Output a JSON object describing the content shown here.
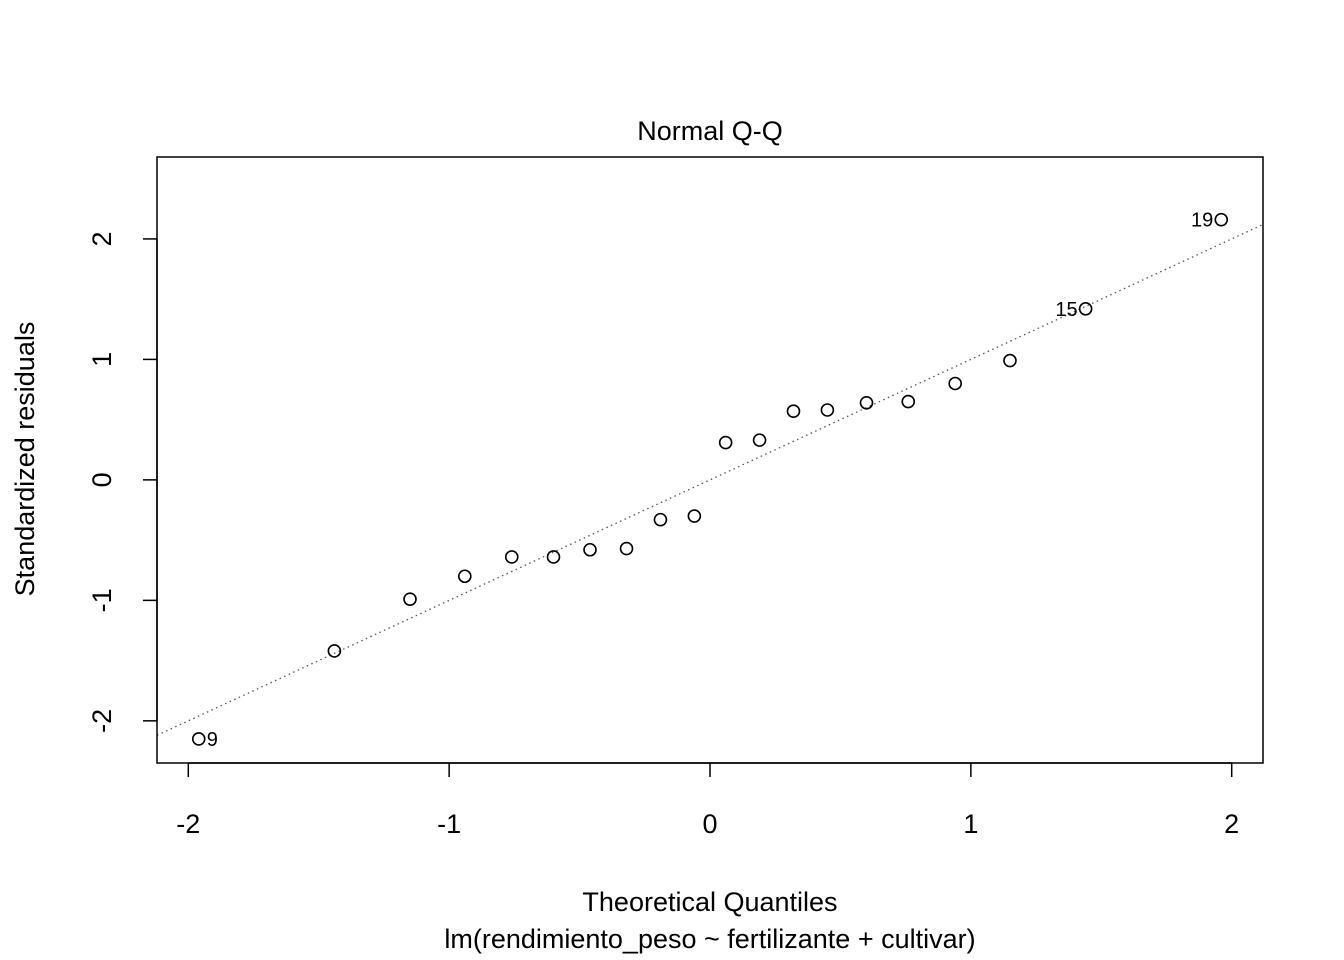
{
  "chart_data": {
    "type": "scatter",
    "title": "Normal Q-Q",
    "xlabel": "Theoretical Quantiles",
    "subtitle": "lm(rendimiento_peso ~ fertilizante + cultivar)",
    "ylabel": "Standardized residuals",
    "xlim": [
      -2.12,
      2.12
    ],
    "ylim": [
      -2.35,
      2.68
    ],
    "x_ticks": [
      -2,
      -1,
      0,
      1,
      2
    ],
    "x_tick_labels": [
      "-2",
      "-1",
      "0",
      "1",
      "2"
    ],
    "y_ticks": [
      -2,
      -1,
      0,
      1,
      2
    ],
    "y_tick_labels": [
      "-2",
      "-1",
      "0",
      "1",
      "2"
    ],
    "grid": false,
    "reference_line": {
      "style": "dotted",
      "intercept": 0.0,
      "slope": 1.0
    },
    "points": [
      {
        "x": -1.96,
        "y": -2.15,
        "label": "9"
      },
      {
        "x": -1.44,
        "y": -1.42,
        "label": ""
      },
      {
        "x": -1.15,
        "y": -0.99,
        "label": ""
      },
      {
        "x": -0.94,
        "y": -0.8,
        "label": ""
      },
      {
        "x": -0.76,
        "y": -0.64,
        "label": ""
      },
      {
        "x": -0.6,
        "y": -0.64,
        "label": ""
      },
      {
        "x": -0.46,
        "y": -0.58,
        "label": ""
      },
      {
        "x": -0.32,
        "y": -0.57,
        "label": ""
      },
      {
        "x": -0.19,
        "y": -0.33,
        "label": ""
      },
      {
        "x": -0.06,
        "y": -0.3,
        "label": ""
      },
      {
        "x": 0.06,
        "y": 0.31,
        "label": ""
      },
      {
        "x": 0.19,
        "y": 0.33,
        "label": ""
      },
      {
        "x": 0.32,
        "y": 0.57,
        "label": ""
      },
      {
        "x": 0.45,
        "y": 0.58,
        "label": ""
      },
      {
        "x": 0.6,
        "y": 0.64,
        "label": ""
      },
      {
        "x": 0.76,
        "y": 0.65,
        "label": ""
      },
      {
        "x": 0.94,
        "y": 0.8,
        "label": ""
      },
      {
        "x": 1.15,
        "y": 0.99,
        "label": ""
      },
      {
        "x": 1.44,
        "y": 1.42,
        "label": "15"
      },
      {
        "x": 1.96,
        "y": 2.16,
        "label": "19"
      }
    ]
  }
}
